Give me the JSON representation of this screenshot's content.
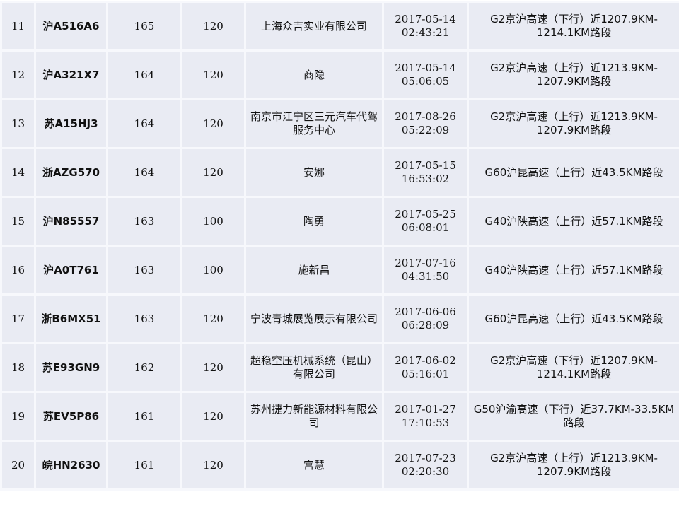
{
  "rows": [
    {
      "rank": "11",
      "plate": "沪A516A6",
      "speed": "165",
      "limit": "120",
      "owner": "上海众吉实业有限公司",
      "date": "2017-05-14",
      "time": "02:43:21",
      "location": "G2京沪高速（下行）近1207.9KM-1214.1KM路段"
    },
    {
      "rank": "12",
      "plate": "沪A321X7",
      "speed": "164",
      "limit": "120",
      "owner": "商隐",
      "date": "2017-05-14",
      "time": "05:06:05",
      "location": "G2京沪高速（上行）近1213.9KM-1207.9KM路段"
    },
    {
      "rank": "13",
      "plate": "苏A15HJ3",
      "speed": "164",
      "limit": "120",
      "owner": "南京市江宁区三元汽车代驾服务中心",
      "date": "2017-08-26",
      "time": "05:22:09",
      "location": "G2京沪高速（上行）近1213.9KM-1207.9KM路段"
    },
    {
      "rank": "14",
      "plate": "浙AZG570",
      "speed": "164",
      "limit": "120",
      "owner": "安娜",
      "date": "2017-05-15",
      "time": "16:53:02",
      "location": "G60沪昆高速（上行）近43.5KM路段"
    },
    {
      "rank": "15",
      "plate": "沪N85557",
      "speed": "163",
      "limit": "100",
      "owner": "陶勇",
      "date": "2017-05-25",
      "time": "06:08:01",
      "location": "G40沪陕高速（上行）近57.1KM路段"
    },
    {
      "rank": "16",
      "plate": "沪A0T761",
      "speed": "163",
      "limit": "100",
      "owner": "施新昌",
      "date": "2017-07-16",
      "time": "04:31:50",
      "location": "G40沪陕高速（上行）近57.1KM路段"
    },
    {
      "rank": "17",
      "plate": "浙B6MX51",
      "speed": "163",
      "limit": "120",
      "owner": "宁波青城展览展示有限公司",
      "date": "2017-06-06",
      "time": "06:28:09",
      "location": "G60沪昆高速（上行）近43.5KM路段"
    },
    {
      "rank": "18",
      "plate": "苏E93GN9",
      "speed": "162",
      "limit": "120",
      "owner": "超稳空压机械系统（昆山）有限公司",
      "date": "2017-06-02",
      "time": "05:16:01",
      "location": "G2京沪高速（下行）近1207.9KM-1214.1KM路段"
    },
    {
      "rank": "19",
      "plate": "苏EV5P86",
      "speed": "161",
      "limit": "120",
      "owner": "苏州捷力新能源材料有限公司",
      "date": "2017-01-27",
      "time": "17:10:53",
      "location": "G50沪渝高速（下行）近37.7KM-33.5KM路段"
    },
    {
      "rank": "20",
      "plate": "皖HN2630",
      "speed": "161",
      "limit": "120",
      "owner": "宫慧",
      "date": "2017-07-23",
      "time": "02:20:30",
      "location": "G2京沪高速（上行）近1213.9KM-1207.9KM路段"
    }
  ]
}
